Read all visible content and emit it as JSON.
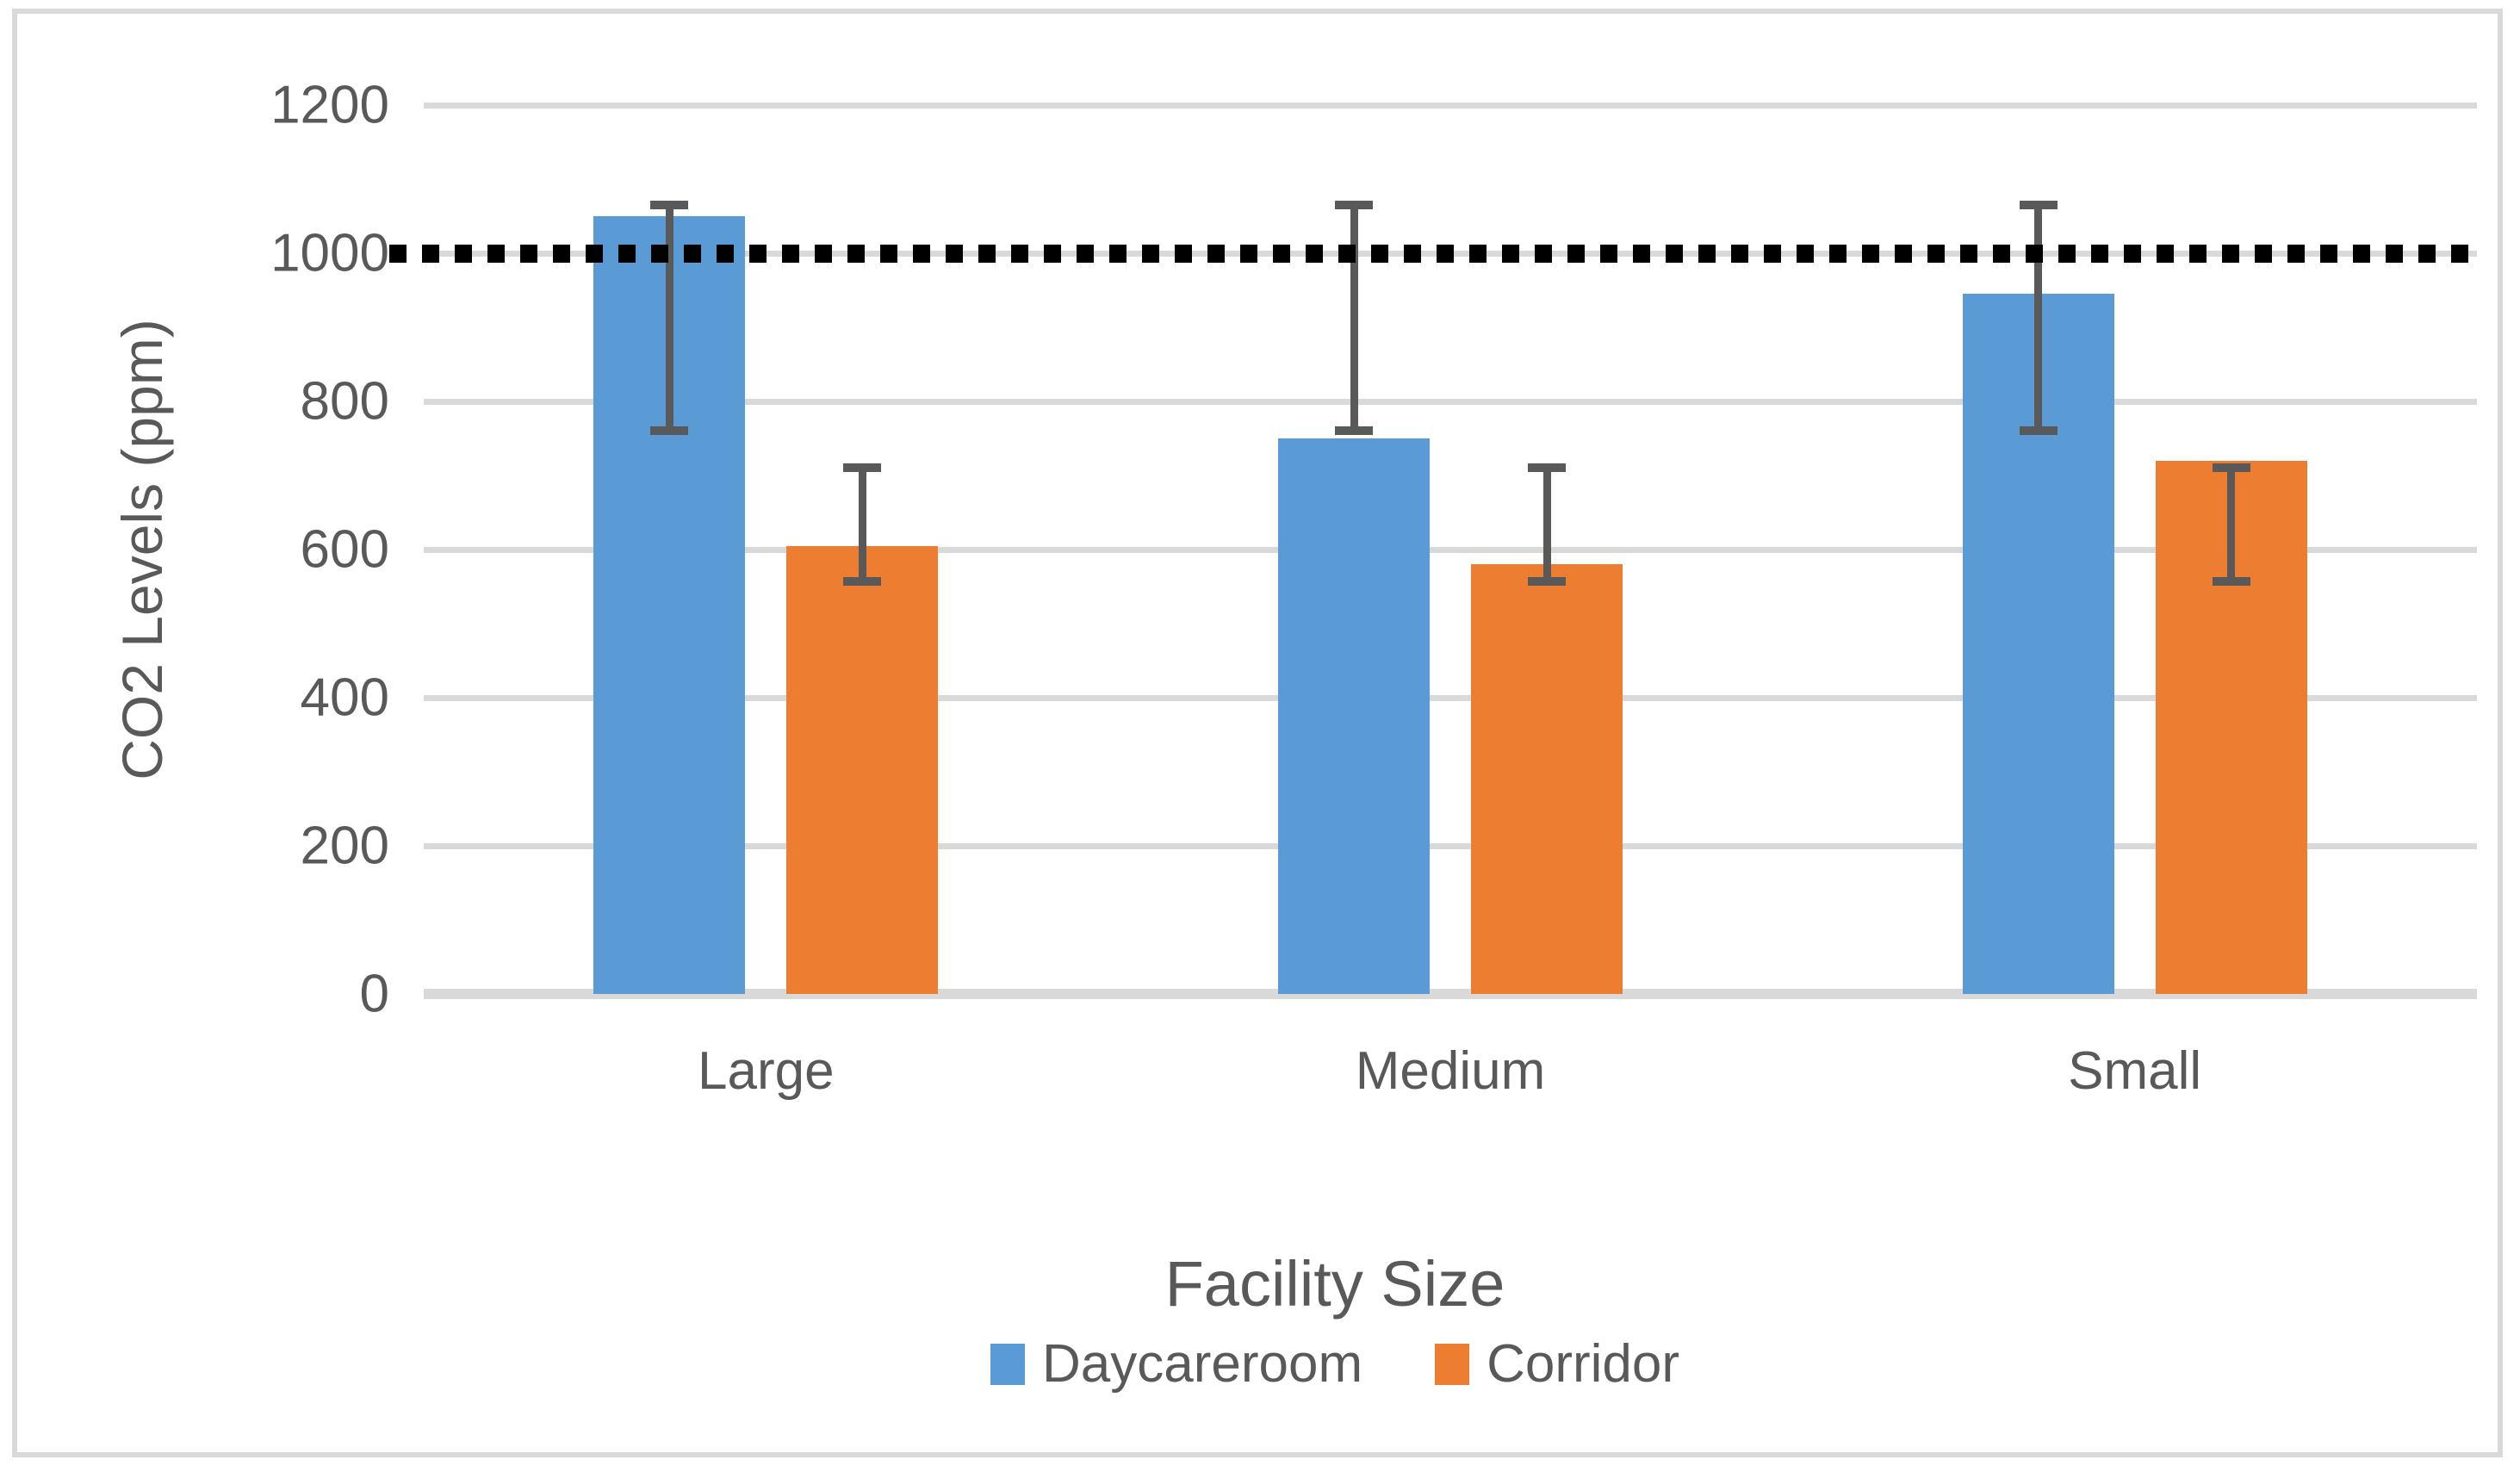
{
  "chart_data": {
    "type": "bar",
    "categories": [
      "Large",
      "Medium",
      "Small"
    ],
    "series": [
      {
        "name": "Daycareroom",
        "color": "#5B9BD5",
        "values": [
          1050,
          750,
          945
        ],
        "error_bars": {
          "low": [
            760,
            760,
            760
          ],
          "high": [
            1065,
            1065,
            1065
          ]
        }
      },
      {
        "name": "Corridor",
        "color": "#ED7D31",
        "values": [
          605,
          580,
          720
        ],
        "error_bars": {
          "low": [
            557,
            557,
            557
          ],
          "high": [
            710,
            710,
            710
          ]
        }
      }
    ],
    "reference_line": {
      "value": 1000,
      "style": "dotted",
      "color": "#000000"
    },
    "xlabel": "Facility Size",
    "ylabel": "CO2 Levels (ppm)",
    "ylim": [
      0,
      1200
    ],
    "ytick_step": 200,
    "ytick_labels": [
      "0",
      "200",
      "400",
      "600",
      "800",
      "1000",
      "1200"
    ],
    "grid": true,
    "legend_position": "bottom",
    "colors": {
      "gridline": "#D9D9D9",
      "error_bar": "#595959",
      "text": "#595959",
      "frame_border": "#D9D9D9"
    }
  }
}
